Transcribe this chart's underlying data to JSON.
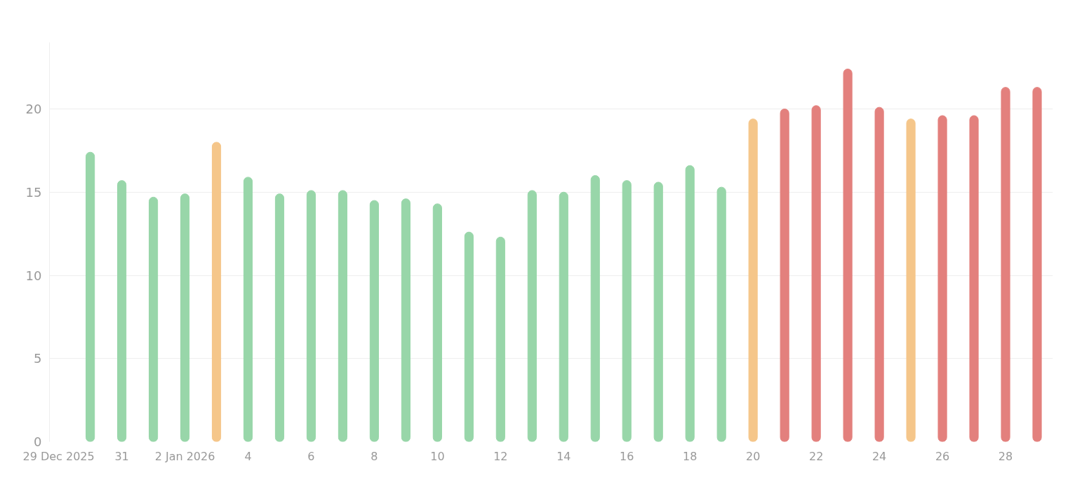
{
  "chart_data": {
    "type": "bar",
    "x": [
      "2025-12-30",
      "2025-12-31",
      "2026-01-01",
      "2026-01-02",
      "2026-01-03",
      "2026-01-04",
      "2026-01-05",
      "2026-01-06",
      "2026-01-07",
      "2026-01-08",
      "2026-01-09",
      "2026-01-10",
      "2026-01-11",
      "2026-01-12",
      "2026-01-13",
      "2026-01-14",
      "2026-01-15",
      "2026-01-16",
      "2026-01-17",
      "2026-01-18",
      "2026-01-19",
      "2026-01-20",
      "2026-01-21",
      "2026-01-22",
      "2026-01-23",
      "2026-01-24",
      "2026-01-25",
      "2026-01-26",
      "2026-01-27",
      "2026-01-28",
      "2026-01-29"
    ],
    "values": [
      17.4,
      15.7,
      14.7,
      14.9,
      18.0,
      15.9,
      14.9,
      15.1,
      15.1,
      14.5,
      14.6,
      14.3,
      12.6,
      12.3,
      15.1,
      15.0,
      16.0,
      15.7,
      15.6,
      16.6,
      15.3,
      19.4,
      20.0,
      20.2,
      22.4,
      20.1,
      19.4,
      19.6,
      19.6,
      21.3,
      21.3
    ],
    "colors": [
      "#98d6a9",
      "#98d6a9",
      "#98d6a9",
      "#98d6a9",
      "#f5c68a",
      "#98d6a9",
      "#98d6a9",
      "#98d6a9",
      "#98d6a9",
      "#98d6a9",
      "#98d6a9",
      "#98d6a9",
      "#98d6a9",
      "#98d6a9",
      "#98d6a9",
      "#98d6a9",
      "#98d6a9",
      "#98d6a9",
      "#98d6a9",
      "#98d6a9",
      "#98d6a9",
      "#f5c68a",
      "#e3807d",
      "#e3807d",
      "#e3807d",
      "#e3807d",
      "#f5c68a",
      "#e3807d",
      "#e3807d",
      "#e3807d",
      "#e3807d"
    ],
    "xlim": [
      "2025-12-28T17:00",
      "2026-01-29T12:00"
    ],
    "xticks": [
      {
        "value": "2025-12-29",
        "label": "29 Dec 2025"
      },
      {
        "value": "2025-12-31",
        "label": "31"
      },
      {
        "value": "2026-01-02",
        "label": "2 Jan 2026"
      },
      {
        "value": "2026-01-04",
        "label": "4"
      },
      {
        "value": "2026-01-06",
        "label": "6"
      },
      {
        "value": "2026-01-08",
        "label": "8"
      },
      {
        "value": "2026-01-10",
        "label": "10"
      },
      {
        "value": "2026-01-12",
        "label": "12"
      },
      {
        "value": "2026-01-14",
        "label": "14"
      },
      {
        "value": "2026-01-16",
        "label": "16"
      },
      {
        "value": "2026-01-18",
        "label": "18"
      },
      {
        "value": "2026-01-20",
        "label": "20"
      },
      {
        "value": "2026-01-22",
        "label": "22"
      },
      {
        "value": "2026-01-24",
        "label": "24"
      },
      {
        "value": "2026-01-26",
        "label": "26"
      },
      {
        "value": "2026-01-28",
        "label": "28"
      }
    ],
    "yticks": [
      0,
      5,
      10,
      15,
      20
    ],
    "ylim": [
      0,
      24
    ],
    "grid": "y"
  }
}
